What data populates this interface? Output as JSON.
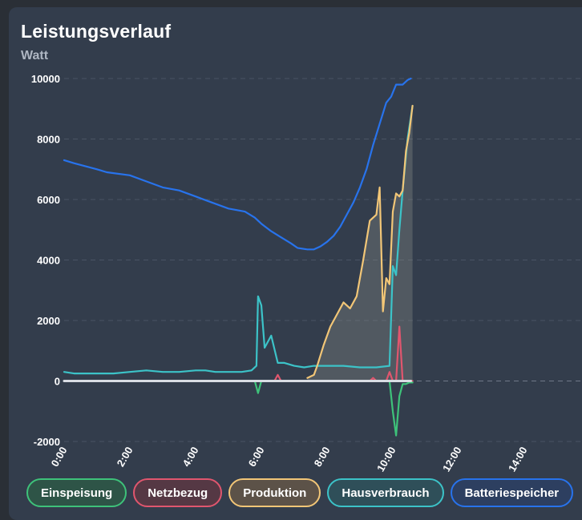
{
  "header": {
    "title": "Leistungsverlauf",
    "unit": "Watt"
  },
  "legend": [
    {
      "label": "Einspeisung",
      "color": "#3ec27a",
      "bg": "#2e5447"
    },
    {
      "label": "Netzbezug",
      "color": "#e0566e",
      "bg": "#553844"
    },
    {
      "label": "Produktion",
      "color": "#f2c677",
      "bg": "#5c5248"
    },
    {
      "label": "Hausverbrauch",
      "color": "#3cc3c8",
      "bg": "#2f4f59"
    },
    {
      "label": "Batteriespeicher",
      "color": "#2873ec",
      "bg": "#2d3f60"
    }
  ],
  "chart_data": {
    "type": "line",
    "title": "Leistungsverlauf",
    "ylabel": "Watt",
    "xlabel": "",
    "ylim": [
      -2000,
      10000
    ],
    "yticks": [
      -2000,
      0,
      2000,
      4000,
      6000,
      8000,
      10000
    ],
    "ytick_labels": [
      "-2000",
      "0",
      "2000",
      "4000",
      "6000",
      "8000",
      "10000"
    ],
    "xlim_hours": [
      0,
      15.5
    ],
    "xtick_labels": [
      "0:00",
      "2:00",
      "4:00",
      "6:00",
      "8:00",
      "10:00",
      "12:00",
      "14:00"
    ],
    "grid": true,
    "legend_position": "bottom",
    "series": [
      {
        "name": "Batteriespeicher",
        "color": "#2873ec",
        "note": "battery level",
        "x": [
          0,
          0.3,
          1.0,
          1.3,
          2.0,
          2.5,
          3.0,
          3.5,
          4.0,
          4.5,
          5.0,
          5.5,
          5.8,
          6.0,
          6.3,
          6.6,
          6.9,
          7.1,
          7.4,
          7.6,
          7.8,
          8.0,
          8.2,
          8.4,
          8.6,
          8.8,
          9.0,
          9.2,
          9.4,
          9.6,
          9.8,
          9.95,
          10.1,
          10.3,
          10.45,
          10.55
        ],
        "y": [
          7300,
          7200,
          7000,
          6900,
          6800,
          6600,
          6400,
          6300,
          6100,
          5900,
          5700,
          5600,
          5400,
          5200,
          4950,
          4750,
          4550,
          4400,
          4350,
          4350,
          4450,
          4600,
          4800,
          5100,
          5500,
          5900,
          6400,
          7000,
          7800,
          8500,
          9200,
          9400,
          9800,
          9800,
          9950,
          10000
        ]
      },
      {
        "name": "Produktion",
        "color": "#f2c677",
        "x": [
          7.4,
          7.6,
          7.7,
          7.9,
          8.1,
          8.3,
          8.5,
          8.7,
          8.9,
          9.1,
          9.3,
          9.5,
          9.6,
          9.7,
          9.8,
          9.9,
          10.0,
          10.1,
          10.2,
          10.3,
          10.4,
          10.5,
          10.6
        ],
        "y": [
          100,
          200,
          500,
          1200,
          1800,
          2200,
          2600,
          2400,
          2800,
          4000,
          5300,
          5500,
          6400,
          2300,
          3400,
          3200,
          5600,
          6200,
          6100,
          6300,
          7600,
          8200,
          9100
        ]
      },
      {
        "name": "Hausverbrauch",
        "color": "#3cc3c8",
        "x": [
          0,
          0.3,
          0.6,
          1.0,
          1.5,
          2.0,
          2.5,
          3.0,
          3.5,
          4.0,
          4.3,
          4.6,
          5.0,
          5.4,
          5.7,
          5.85,
          5.9,
          6.0,
          6.1,
          6.3,
          6.5,
          6.7,
          7.0,
          7.3,
          7.6,
          8.0,
          8.5,
          9.0,
          9.5,
          9.9,
          10.0,
          10.1,
          10.2,
          10.3,
          10.45,
          10.6
        ],
        "y": [
          300,
          250,
          250,
          250,
          250,
          300,
          350,
          300,
          300,
          350,
          350,
          300,
          300,
          300,
          350,
          500,
          2800,
          2500,
          1100,
          1500,
          600,
          600,
          500,
          450,
          500,
          500,
          500,
          450,
          450,
          500,
          3800,
          3500,
          5000,
          6300,
          8000,
          9100
        ]
      },
      {
        "name": "Netzbezug",
        "color": "#e0566e",
        "x": [
          0,
          6.4,
          6.5,
          6.6,
          9.3,
          9.4,
          9.5,
          9.8,
          9.9,
          10.0,
          10.1,
          10.2,
          10.3,
          10.6
        ],
        "y": [
          0,
          0,
          200,
          0,
          0,
          100,
          0,
          0,
          300,
          0,
          0,
          1800,
          0,
          0
        ]
      },
      {
        "name": "Einspeisung",
        "color": "#3ec27a",
        "x": [
          0,
          5.8,
          5.9,
          6.0,
          6.1,
          9.9,
          10.0,
          10.1,
          10.2,
          10.3,
          10.4,
          10.5,
          10.6
        ],
        "y": [
          0,
          0,
          -400,
          0,
          0,
          0,
          -1000,
          -1800,
          -500,
          -100,
          -100,
          -50,
          -50
        ]
      }
    ]
  }
}
